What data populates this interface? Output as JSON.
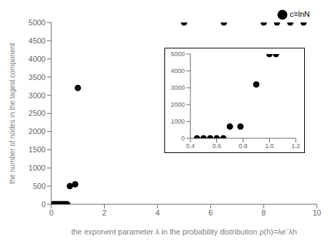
{
  "chart_data": [
    {
      "type": "scatter",
      "xlabel": "the exponent parameter λ in the probability distribution ρ(h)=λe⁻λh",
      "ylabel": "the number of nodes in the lagest component",
      "x": [
        0.05,
        0.1,
        0.15,
        0.2,
        0.25,
        0.3,
        0.35,
        0.4,
        0.45,
        0.5,
        0.55,
        0.6,
        0.7,
        0.9,
        1.0,
        5.0,
        6.5,
        8.0,
        8.5,
        9.0,
        9.5
      ],
      "series": [
        {
          "name": "c=lnN",
          "color": "#000000",
          "values": [
            0,
            0,
            0,
            0,
            0,
            0,
            0,
            0,
            0,
            0,
            0,
            0,
            500,
            550,
            3200,
            5000,
            5000,
            5000,
            5000,
            5000,
            5000
          ]
        }
      ],
      "xlim": [
        0,
        10
      ],
      "ylim": [
        0,
        5000
      ],
      "xticks": [
        0,
        2,
        4,
        6,
        8,
        10
      ],
      "yticks": [
        0,
        500,
        1000,
        1500,
        2000,
        2500,
        3000,
        3500,
        4000,
        4500,
        5000
      ],
      "legend": "upper right"
    },
    {
      "type": "scatter",
      "x": [
        0.45,
        0.5,
        0.55,
        0.6,
        0.65,
        0.7,
        0.78,
        0.9,
        1.0,
        1.05
      ],
      "values": [
        0,
        0,
        0,
        0,
        0,
        700,
        700,
        3200,
        5000,
        5000
      ],
      "color": "#000000",
      "xlim": [
        0.4,
        1.2
      ],
      "ylim": [
        0,
        5000
      ],
      "xticks": [
        0.4,
        0.6,
        0.8,
        {
          "value": 1,
          "label": "1.0"
        },
        1.2
      ],
      "yticks": [
        0,
        1000,
        2000,
        3000,
        4000,
        5000
      ]
    }
  ]
}
